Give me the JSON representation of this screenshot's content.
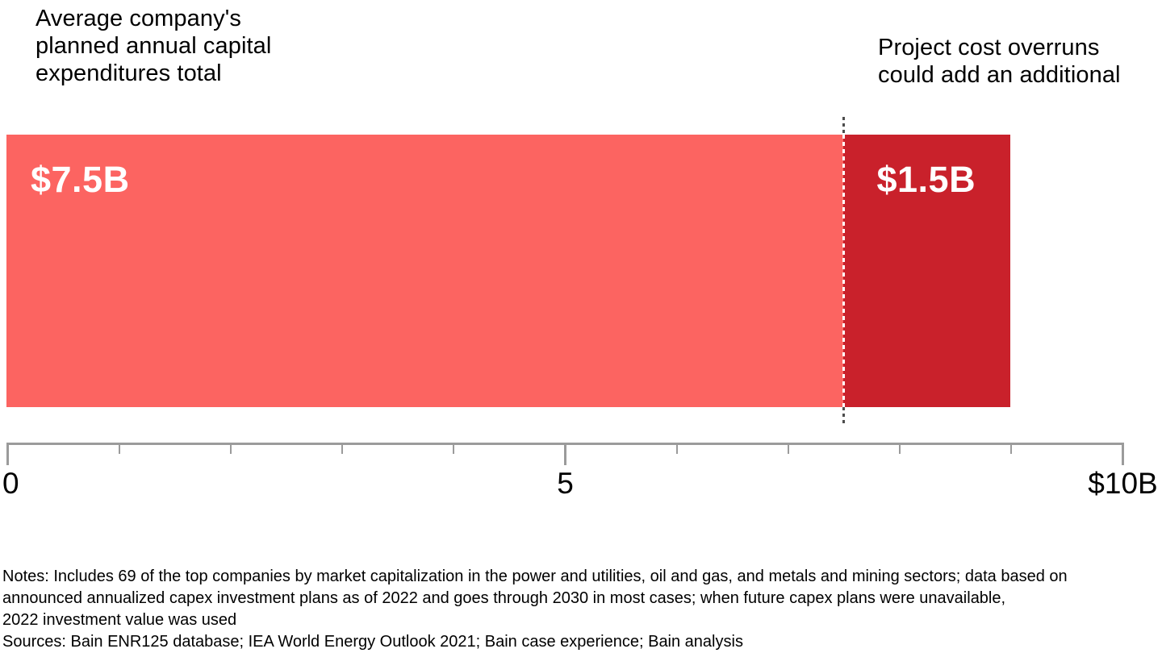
{
  "annotations": {
    "left_title": "Average company's\nplanned annual capital\nexpenditures total",
    "right_title": "Project cost overruns\ncould add an additional"
  },
  "chart_data": {
    "type": "bar",
    "orientation": "horizontal",
    "stacked": true,
    "title": "",
    "xlabel": "",
    "ylabel": "",
    "xlim": [
      0,
      10
    ],
    "units": "billions of dollars",
    "series": [
      {
        "name": "Average company's planned annual capital expenditures total",
        "value": 7.5,
        "label": "$7.5B",
        "color": "#FC6461"
      },
      {
        "name": "Project cost overruns could add an additional",
        "value": 1.5,
        "label": "$1.5B",
        "color": "#C9212B"
      }
    ],
    "total": 9.0,
    "divider": {
      "position": 7.5,
      "style": "dashed",
      "color_outside_bar": "#4d4d4d",
      "color_over_bar": "#ffffff"
    },
    "axis": {
      "min": 0,
      "max": 10,
      "major_ticks": [
        0,
        5,
        10
      ],
      "minor_ticks": [
        1,
        2,
        3,
        4,
        6,
        7,
        8,
        9
      ],
      "tick_labels": [
        {
          "value": 0,
          "label": "0"
        },
        {
          "value": 5,
          "label": "5"
        },
        {
          "value": 10,
          "label": "$10B"
        }
      ],
      "line_color": "#9B9B9B"
    }
  },
  "footnotes": {
    "notes": "Notes: Includes 69 of the top companies by market capitalization in the power and utilities, oil and gas, and metals and mining sectors; data based on\nannounced annualized capex investment plans as of 2022 and goes through 2030 in most cases; when future capex plans were unavailable,\n2022 investment value was used",
    "sources": "Sources: Bain ENR125 database; IEA World Energy Outlook 2021; Bain case experience; Bain analysis"
  },
  "colors": {
    "background": "#ffffff",
    "text": "#000000",
    "bar_light": "#FC6461",
    "bar_dark": "#C9212B",
    "bar_value_text": "#ffffff",
    "axis": "#9B9B9B",
    "divider_dark": "#4d4d4d",
    "divider_light": "#ffffff"
  }
}
